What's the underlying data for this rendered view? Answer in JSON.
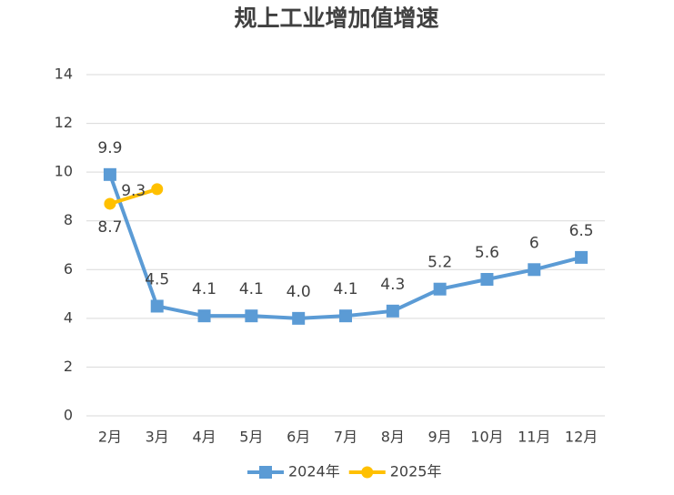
{
  "chart_data": {
    "type": "line",
    "title": "规上工业增加值增速",
    "categories": [
      "2月",
      "3月",
      "4月",
      "5月",
      "6月",
      "7月",
      "8月",
      "9月",
      "10月",
      "11月",
      "12月"
    ],
    "series": [
      {
        "name": "2024年",
        "color": "#5b9bd5",
        "marker": "square",
        "values": [
          9.9,
          4.5,
          4.1,
          4.1,
          4.0,
          4.1,
          4.3,
          5.2,
          5.6,
          6,
          6.5
        ],
        "value_labels": [
          "9.9",
          "4.5",
          "4.1",
          "4.1",
          "4.0",
          "4.1",
          "4.3",
          "5.2",
          "5.6",
          "6",
          "6.5"
        ]
      },
      {
        "name": "2025年",
        "color": "#ffc000",
        "marker": "circle",
        "values": [
          8.7,
          9.3,
          null,
          null,
          null,
          null,
          null,
          null,
          null,
          null,
          null
        ],
        "value_labels": [
          "8.7",
          "9.3",
          null,
          null,
          null,
          null,
          null,
          null,
          null,
          null,
          null
        ]
      }
    ],
    "ylim": [
      0,
      14
    ],
    "yticks": [
      0,
      2,
      4,
      6,
      8,
      10,
      12,
      14
    ],
    "grid": true,
    "legend": "bottom"
  }
}
